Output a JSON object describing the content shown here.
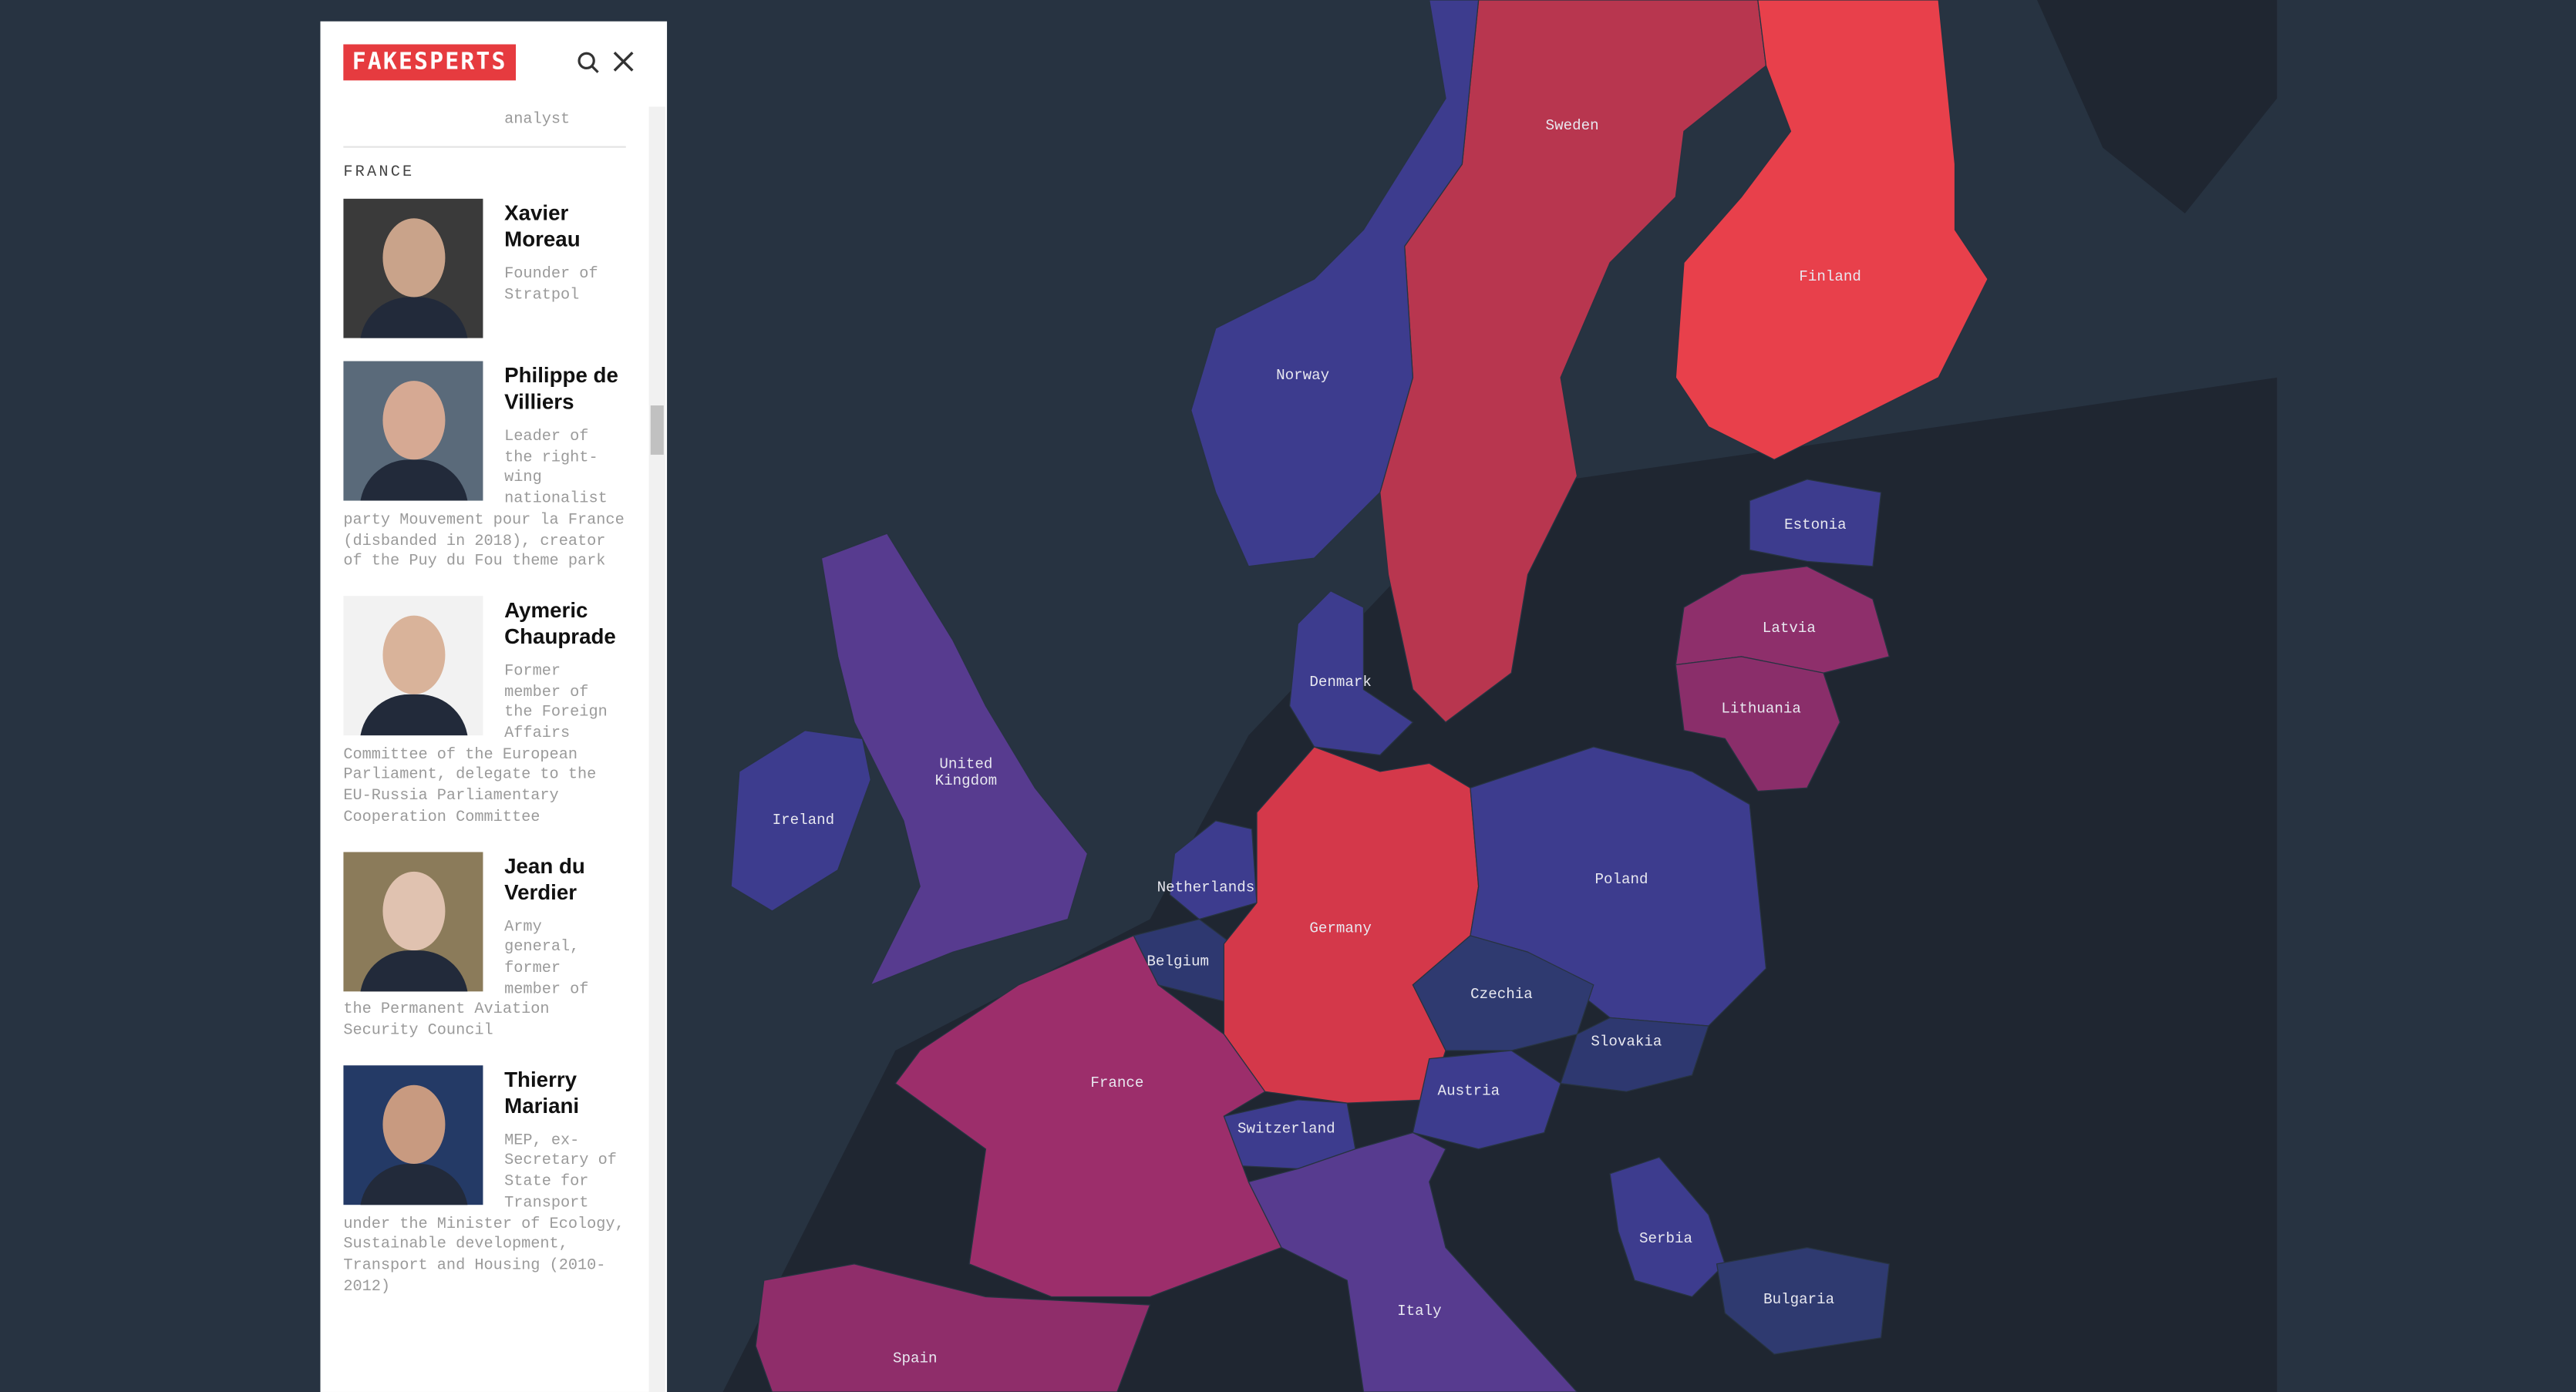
{
  "header": {
    "logo": "FAKESPERTS"
  },
  "sidebar": {
    "previous_text": "analyst",
    "section": "FRANCE",
    "people": [
      {
        "name": "Xavier Moreau",
        "description": "Founder of Stratpol"
      },
      {
        "name": "Philippe de Villiers",
        "description": "Leader of the right-wing nationalist party Mouvement pour la France (disbanded in 2018), creator of the Puy du Fou theme park"
      },
      {
        "name": "Aymeric Chauprade",
        "description": "Former member of the Foreign Affairs Committee of the European Parliament, delegate to the EU-Russia Parliamentary Cooperation Committee"
      },
      {
        "name": "Jean du Verdier",
        "description": "Army general, former member of the Permanent Aviation Security Council"
      },
      {
        "name": "Thierry Mariani",
        "description": "MEP, ex-Secretary of State for Transport under the Minister of Ecology, Sustainable development, Transport and Housing (2010-2012)"
      }
    ]
  },
  "map": {
    "countries": [
      "Sweden",
      "Finland",
      "Norway",
      "Estonia",
      "Latvia",
      "Lithuania",
      "Denmark",
      "United Kingdom",
      "Ireland",
      "Netherlands",
      "Belgium",
      "Germany",
      "Poland",
      "Czechia",
      "Slovakia",
      "Austria",
      "Switzerland",
      "France",
      "Italy",
      "Serbia",
      "Bulgaria",
      "Spain"
    ]
  }
}
